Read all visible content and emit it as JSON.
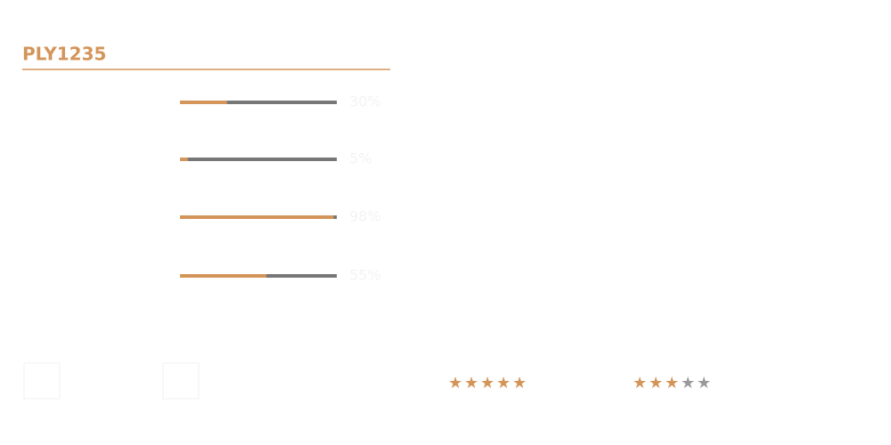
{
  "header": {
    "title": "PLY1235"
  },
  "bars": {
    "values": [
      30,
      5,
      98,
      55
    ],
    "value_labels": [
      "30%",
      "5%",
      "98%",
      "55%"
    ],
    "color": "#d4955a",
    "track_color": "#777777",
    "max": 100
  },
  "ratings": {
    "values": [
      5,
      3
    ],
    "max": 5,
    "color": "#d4955a",
    "empty_color": "#999999"
  }
}
